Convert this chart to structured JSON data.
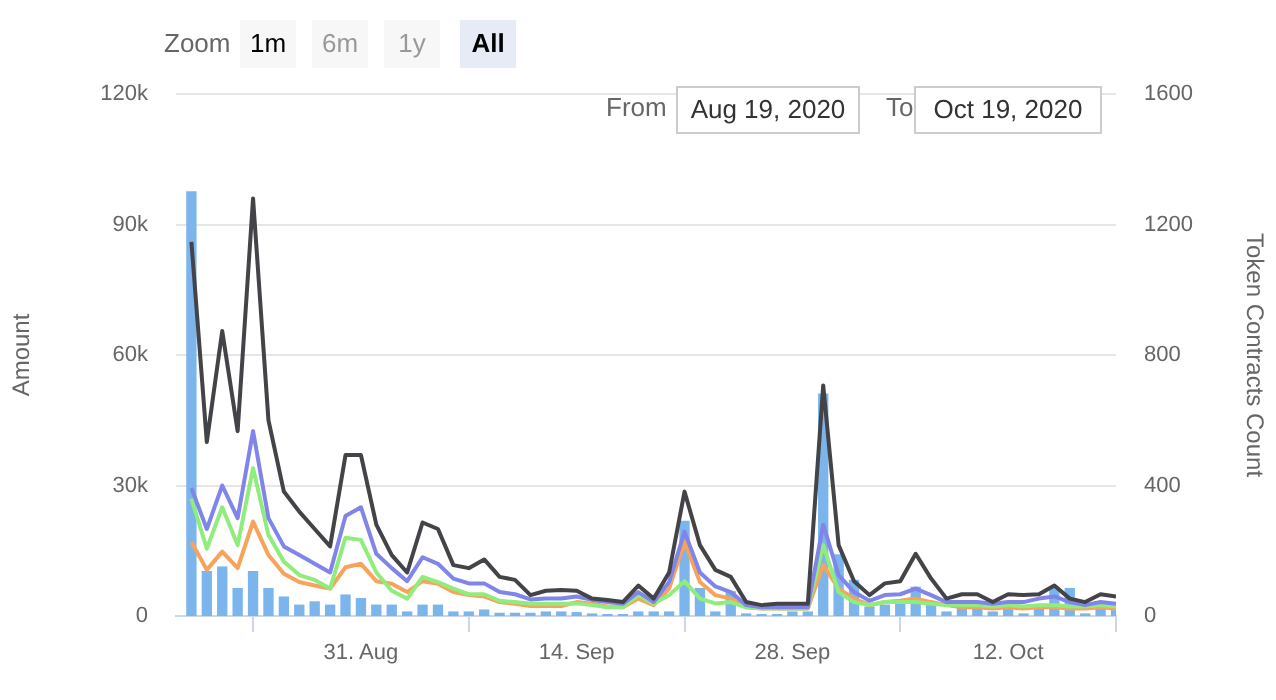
{
  "chart_data": {
    "type": "line",
    "ylabel": "Amount",
    "y2label": "Token Contracts Count",
    "annotations": [
      "Zoom",
      "1m",
      "6m",
      "1y",
      "All",
      "From",
      "Aug 19, 2020",
      "To",
      "Oct 19, 2020"
    ],
    "x": [
      "2020-08-20",
      "2020-08-21",
      "2020-08-22",
      "2020-08-23",
      "2020-08-24",
      "2020-08-25",
      "2020-08-26",
      "2020-08-27",
      "2020-08-28",
      "2020-08-29",
      "2020-08-30",
      "2020-08-31",
      "2020-09-01",
      "2020-09-02",
      "2020-09-03",
      "2020-09-04",
      "2020-09-05",
      "2020-09-06",
      "2020-09-07",
      "2020-09-08",
      "2020-09-09",
      "2020-09-10",
      "2020-09-11",
      "2020-09-12",
      "2020-09-13",
      "2020-09-14",
      "2020-09-15",
      "2020-09-16",
      "2020-09-17",
      "2020-09-18",
      "2020-09-19",
      "2020-09-20",
      "2020-09-21",
      "2020-09-22",
      "2020-09-23",
      "2020-09-24",
      "2020-09-25",
      "2020-09-26",
      "2020-09-27",
      "2020-09-28",
      "2020-09-29",
      "2020-09-30",
      "2020-10-01",
      "2020-10-02",
      "2020-10-03",
      "2020-10-04",
      "2020-10-05",
      "2020-10-06",
      "2020-10-07",
      "2020-10-08",
      "2020-10-09",
      "2020-10-10",
      "2020-10-11",
      "2020-10-12",
      "2020-10-13",
      "2020-10-14",
      "2020-10-15",
      "2020-10-16",
      "2020-10-17",
      "2020-10-18",
      "2020-10-19"
    ],
    "series": [
      {
        "type": "bar",
        "axis": "y2",
        "color": "#7cb5ec",
        "values": [
          1300,
          136,
          150,
          84,
          136,
          84,
          58,
          33,
          43,
          33,
          64,
          53,
          33,
          33,
          12,
          33,
          33,
          12,
          12,
          18,
          8,
          8,
          8,
          12,
          12,
          10,
          6,
          4,
          4,
          12,
          12,
          12,
          290,
          84,
          12,
          74,
          6,
          4,
          4,
          12,
          12,
          680,
          187,
          109,
          27,
          33,
          39,
          88,
          43,
          12,
          33,
          33,
          12,
          33,
          6,
          33,
          84,
          84,
          6,
          33,
          33
        ]
      },
      {
        "color": "#434348",
        "values": [
          86000,
          40000,
          65500,
          42500,
          96000,
          45000,
          28600,
          24000,
          20000,
          16000,
          37000,
          37000,
          21000,
          14000,
          10000,
          21500,
          20000,
          11700,
          11000,
          13000,
          9000,
          8300,
          4800,
          5800,
          6000,
          5800,
          4000,
          3700,
          3200,
          7000,
          4000,
          10000,
          28600,
          16300,
          10600,
          9000,
          3200,
          2500,
          2800,
          2800,
          2800,
          53000,
          16300,
          8000,
          4800,
          7500,
          8000,
          14300,
          8600,
          4000,
          5000,
          5000,
          3200,
          5000,
          4800,
          5000,
          7000,
          4000,
          3200,
          5000,
          4500
        ]
      },
      {
        "color": "#8085e9",
        "values": [
          29400,
          20000,
          30000,
          22500,
          42500,
          22500,
          16000,
          14000,
          12000,
          10000,
          23000,
          25000,
          14300,
          11000,
          8000,
          13500,
          12000,
          8600,
          7500,
          7500,
          5500,
          5000,
          3800,
          4000,
          4000,
          4500,
          3700,
          3200,
          2800,
          5500,
          3200,
          7800,
          19400,
          10000,
          6800,
          5500,
          2500,
          2000,
          2000,
          2000,
          2000,
          21000,
          9400,
          5500,
          3500,
          4800,
          5000,
          6300,
          4800,
          3200,
          3200,
          3200,
          2800,
          3200,
          3200,
          4000,
          4500,
          3200,
          2500,
          3200,
          2800
        ]
      },
      {
        "color": "#90ed7d",
        "values": [
          27000,
          15500,
          25000,
          16300,
          34000,
          18600,
          12500,
          9400,
          8300,
          6300,
          18000,
          17500,
          10000,
          5800,
          4000,
          9000,
          7800,
          6300,
          5000,
          5000,
          3500,
          3200,
          2800,
          2800,
          2800,
          2900,
          2500,
          2000,
          2000,
          4800,
          2800,
          4800,
          8000,
          4000,
          2900,
          3200,
          2000,
          1700,
          1700,
          1700,
          1700,
          16300,
          5500,
          3200,
          2500,
          3200,
          3200,
          3200,
          2800,
          2500,
          2500,
          2500,
          2200,
          2500,
          2200,
          2500,
          2500,
          2200,
          2200,
          2500,
          2200
        ]
      },
      {
        "color": "#f7a35c",
        "values": [
          17000,
          10600,
          14800,
          11000,
          21700,
          14000,
          9700,
          7800,
          7000,
          6300,
          11200,
          12000,
          8000,
          7400,
          5500,
          8000,
          7400,
          5500,
          4800,
          4500,
          3200,
          2800,
          2300,
          2300,
          2300,
          3200,
          2800,
          2200,
          2000,
          4000,
          2500,
          6300,
          17000,
          7800,
          4800,
          4000,
          2000,
          1700,
          1700,
          1700,
          1700,
          11700,
          6300,
          4000,
          2500,
          3200,
          3500,
          4000,
          3200,
          2500,
          2000,
          2000,
          1700,
          2000,
          1700,
          2000,
          2000,
          1700,
          1700,
          2000,
          1700
        ]
      }
    ],
    "xlim": [
      "2020-08-19",
      "2020-10-19"
    ],
    "xticks": [
      {
        "value": "2020-08-31",
        "label": "31. Aug"
      },
      {
        "value": "2020-09-14",
        "label": "14. Sep"
      },
      {
        "value": "2020-09-28",
        "label": "28. Sep"
      },
      {
        "value": "2020-10-12",
        "label": "12. Oct"
      }
    ],
    "ylim": [
      0,
      120000
    ],
    "yticks": [
      0,
      {
        "value": 30000,
        "label": "30k"
      },
      {
        "value": 60000,
        "label": "60k"
      },
      {
        "value": 90000,
        "label": "90k"
      },
      {
        "value": 120000,
        "label": "120k"
      }
    ],
    "y2lim": [
      0,
      1600
    ],
    "y2ticks": [
      0,
      400,
      800,
      1200,
      1600
    ],
    "grid": "y",
    "legend": false,
    "marker": "none",
    "line_style": "solid"
  }
}
